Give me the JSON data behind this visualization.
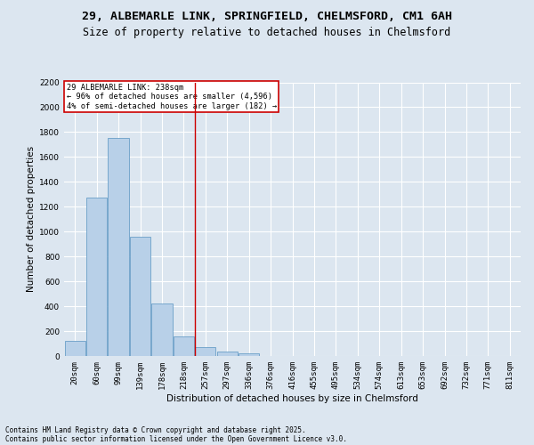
{
  "title_line1": "29, ALBEMARLE LINK, SPRINGFIELD, CHELMSFORD, CM1 6AH",
  "title_line2": "Size of property relative to detached houses in Chelmsford",
  "xlabel": "Distribution of detached houses by size in Chelmsford",
  "ylabel": "Number of detached properties",
  "categories": [
    "20sqm",
    "60sqm",
    "99sqm",
    "139sqm",
    "178sqm",
    "218sqm",
    "257sqm",
    "297sqm",
    "336sqm",
    "376sqm",
    "416sqm",
    "455sqm",
    "495sqm",
    "534sqm",
    "574sqm",
    "613sqm",
    "653sqm",
    "692sqm",
    "732sqm",
    "771sqm",
    "811sqm"
  ],
  "values": [
    120,
    1275,
    1750,
    960,
    420,
    155,
    75,
    35,
    20,
    0,
    0,
    0,
    0,
    0,
    0,
    0,
    0,
    0,
    0,
    0,
    0
  ],
  "bar_color": "#b8d0e8",
  "bar_edge_color": "#6a9fc8",
  "vline_x": 5.5,
  "vline_color": "#cc0000",
  "annotation_text": "29 ALBEMARLE LINK: 238sqm\n← 96% of detached houses are smaller (4,596)\n4% of semi-detached houses are larger (182) →",
  "annotation_box_color": "#ffffff",
  "annotation_box_edge": "#cc0000",
  "ylim": [
    0,
    2200
  ],
  "yticks": [
    0,
    200,
    400,
    600,
    800,
    1000,
    1200,
    1400,
    1600,
    1800,
    2000,
    2200
  ],
  "background_color": "#dce6f0",
  "plot_bg_color": "#dce6f0",
  "grid_color": "#ffffff",
  "footer_line1": "Contains HM Land Registry data © Crown copyright and database right 2025.",
  "footer_line2": "Contains public sector information licensed under the Open Government Licence v3.0.",
  "title_fontsize": 9.5,
  "subtitle_fontsize": 8.5,
  "tick_fontsize": 6.5,
  "label_fontsize": 7.5,
  "footer_fontsize": 5.5
}
